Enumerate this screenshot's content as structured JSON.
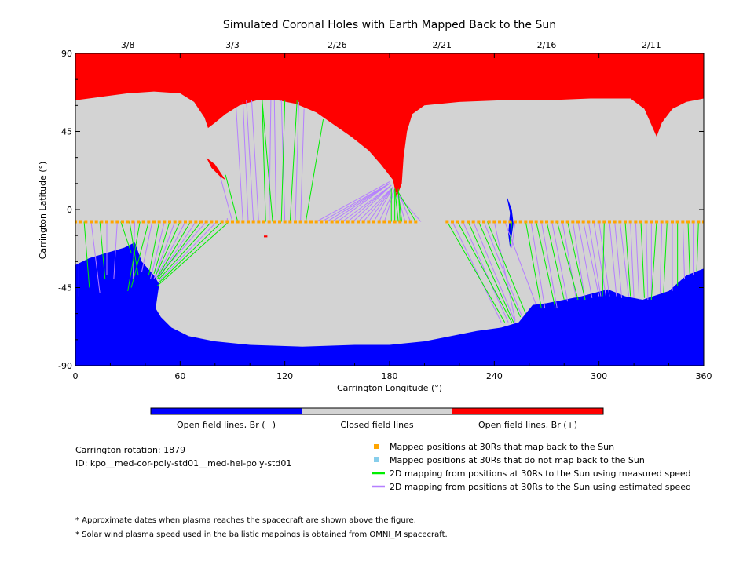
{
  "chart_data": {
    "type": "scatter",
    "title": "Simulated Coronal Holes with Earth Mapped Back to the Sun",
    "xlabel": "Carrington Longitude (°)",
    "ylabel": "Carrington Latitude (°)",
    "xlim": [
      0,
      360
    ],
    "ylim": [
      -90,
      90
    ],
    "x_ticks": [
      0,
      60,
      120,
      180,
      240,
      300,
      360
    ],
    "y_ticks": [
      90,
      45,
      0,
      -45,
      -90
    ],
    "top_axis": {
      "ticks": [
        {
          "label": "3/8",
          "x": 30
        },
        {
          "label": "3/3",
          "x": 90
        },
        {
          "label": "2/26",
          "x": 150
        },
        {
          "label": "2/21",
          "x": 210
        },
        {
          "label": "2/16",
          "x": 270
        },
        {
          "label": "2/11",
          "x": 330
        }
      ]
    },
    "regions": {
      "colorbar": [
        {
          "label": "Open field lines, Br (−)",
          "color": "#0000ff"
        },
        {
          "label": "Closed field lines",
          "color": "#d3d3d3"
        },
        {
          "label": "Open field lines, Br (+)",
          "color": "#ff0000"
        }
      ],
      "north_hole_boundary": [
        [
          0,
          63
        ],
        [
          15,
          65
        ],
        [
          30,
          67
        ],
        [
          45,
          68
        ],
        [
          60,
          67
        ],
        [
          68,
          62
        ],
        [
          74,
          53
        ],
        [
          76,
          47
        ],
        [
          80,
          50
        ],
        [
          86,
          55
        ],
        [
          94,
          60
        ],
        [
          104,
          63
        ],
        [
          116,
          63
        ],
        [
          126,
          61
        ],
        [
          138,
          56
        ],
        [
          148,
          49
        ],
        [
          158,
          42
        ],
        [
          168,
          34
        ],
        [
          175,
          26
        ],
        [
          182,
          17
        ],
        [
          184,
          7
        ],
        [
          187,
          15
        ],
        [
          188,
          30
        ],
        [
          190,
          45
        ],
        [
          193,
          55
        ],
        [
          200,
          60
        ],
        [
          220,
          62
        ],
        [
          245,
          63
        ],
        [
          270,
          63
        ],
        [
          295,
          64
        ],
        [
          318,
          64
        ],
        [
          326,
          58
        ],
        [
          333,
          42
        ],
        [
          336,
          50
        ],
        [
          342,
          58
        ],
        [
          350,
          62
        ],
        [
          360,
          64
        ]
      ],
      "south_hole_boundary": [
        [
          0,
          -32
        ],
        [
          8,
          -28
        ],
        [
          18,
          -25
        ],
        [
          28,
          -22
        ],
        [
          34,
          -19
        ],
        [
          38,
          -30
        ],
        [
          45,
          -38
        ],
        [
          48,
          -43
        ],
        [
          47,
          -50
        ],
        [
          46,
          -57
        ],
        [
          49,
          -62
        ],
        [
          55,
          -68
        ],
        [
          65,
          -73
        ],
        [
          80,
          -76
        ],
        [
          100,
          -78
        ],
        [
          130,
          -79
        ],
        [
          160,
          -78
        ],
        [
          180,
          -78
        ],
        [
          200,
          -76
        ],
        [
          215,
          -73
        ],
        [
          230,
          -70
        ],
        [
          244,
          -68
        ],
        [
          254,
          -65
        ],
        [
          258,
          -60
        ],
        [
          262,
          -55
        ],
        [
          270,
          -54
        ],
        [
          290,
          -50
        ],
        [
          305,
          -46
        ],
        [
          315,
          -50
        ],
        [
          325,
          -52
        ],
        [
          340,
          -47
        ],
        [
          350,
          -38
        ],
        [
          360,
          -34
        ]
      ],
      "north_islands": [
        [
          [
            75,
            30
          ],
          [
            80,
            26
          ],
          [
            86,
            17
          ],
          [
            83,
            19
          ],
          [
            78,
            24
          ]
        ]
      ],
      "south_islands": [
        [
          [
            247,
            8
          ],
          [
            250,
            0
          ],
          [
            251,
            -8
          ],
          [
            249,
            -22
          ],
          [
            248,
            -14
          ],
          [
            249,
            -2
          ]
        ],
        [
          [
            108,
            -15
          ],
          [
            110,
            -15
          ],
          [
            110,
            -16
          ],
          [
            108,
            -16
          ]
        ]
      ]
    },
    "series": [
      {
        "name": "Mapped positions at 30Rs that map back to the Sun",
        "marker": "square",
        "color": "#ffa500",
        "lat": -7,
        "x": [
          0,
          3,
          6,
          9,
          12,
          15,
          18,
          21,
          24,
          27,
          30,
          33,
          36,
          39,
          42,
          45,
          48,
          51,
          54,
          57,
          60,
          63,
          66,
          69,
          72,
          75,
          78,
          81,
          84,
          87,
          90,
          93,
          96,
          99,
          102,
          105,
          108,
          111,
          114,
          117,
          120,
          123,
          126,
          129,
          132,
          135,
          138,
          141,
          144,
          147,
          150,
          153,
          156,
          159,
          162,
          165,
          168,
          171,
          174,
          177,
          180,
          183,
          186,
          189,
          192,
          195,
          213,
          216,
          219,
          222,
          225,
          228,
          231,
          234,
          237,
          240,
          243,
          246,
          249,
          252,
          255,
          258,
          261,
          264,
          267,
          270,
          273,
          276,
          279,
          282,
          285,
          288,
          291,
          294,
          297,
          300,
          303,
          306,
          309,
          312,
          315,
          318,
          321,
          324,
          327,
          330,
          333,
          336,
          339,
          342,
          345,
          348,
          351,
          354,
          357,
          360
        ]
      },
      {
        "name": "Mapped positions at 30Rs that do not map back to the Sun",
        "marker": "square",
        "color": "#87ceeb",
        "lat": -7,
        "x": []
      },
      {
        "name": "2D mapping from positions at 30Rs to the Sun using measured speed",
        "color": "#00ee00",
        "segments": [
          [
            0,
            -7,
            0,
            -28
          ],
          [
            5,
            -7,
            8,
            -45
          ],
          [
            14,
            -7,
            17,
            -40
          ],
          [
            26,
            -7,
            32,
            -25
          ],
          [
            31,
            -7,
            36,
            -38
          ],
          [
            37,
            -7,
            30,
            -47
          ],
          [
            42,
            -7,
            32,
            -45
          ],
          [
            48,
            -7,
            42,
            -38
          ],
          [
            54,
            -7,
            45,
            -37
          ],
          [
            60,
            -7,
            46,
            -38
          ],
          [
            66,
            -7,
            47,
            -39
          ],
          [
            72,
            -7,
            47,
            -40
          ],
          [
            78,
            -7,
            48,
            -40
          ],
          [
            84,
            -7,
            48,
            -42
          ],
          [
            88,
            -7,
            47,
            -44
          ],
          [
            93,
            -7,
            86,
            20
          ],
          [
            109,
            -7,
            107,
            63
          ],
          [
            113,
            -7,
            107,
            63
          ],
          [
            118,
            -7,
            120,
            63
          ],
          [
            123,
            -7,
            127,
            63
          ],
          [
            132,
            -7,
            142,
            52
          ],
          [
            181,
            -7,
            181,
            12
          ],
          [
            183,
            -7,
            183,
            12
          ],
          [
            185,
            -7,
            183,
            12
          ],
          [
            186,
            -7,
            185,
            12
          ],
          [
            187,
            -7,
            185,
            10
          ],
          [
            195,
            -7,
            185,
            10
          ],
          [
            213,
            -7,
            246,
            -65
          ],
          [
            219,
            -7,
            250,
            -65
          ],
          [
            225,
            -7,
            251,
            -65
          ],
          [
            231,
            -7,
            255,
            -62
          ],
          [
            236,
            -7,
            258,
            -60
          ],
          [
            250,
            -7,
            249,
            -20
          ],
          [
            258,
            -7,
            267,
            -57
          ],
          [
            264,
            -7,
            275,
            -57
          ],
          [
            270,
            -7,
            280,
            -52
          ],
          [
            276,
            -7,
            288,
            -52
          ],
          [
            282,
            -7,
            292,
            -52
          ],
          [
            303,
            -7,
            302,
            -50
          ],
          [
            315,
            -7,
            318,
            -50
          ],
          [
            324,
            -7,
            326,
            -51
          ],
          [
            333,
            -7,
            330,
            -52
          ],
          [
            339,
            -7,
            337,
            -48
          ],
          [
            345,
            -7,
            345,
            -44
          ],
          [
            351,
            -7,
            352,
            -37
          ],
          [
            357,
            -7,
            356,
            -36
          ]
        ]
      },
      {
        "name": "2D mapping from positions at 30Rs to the Sun using estimated speed",
        "color": "#b57fff",
        "segments": [
          [
            2,
            -7,
            2,
            -50
          ],
          [
            9,
            -7,
            14,
            -48
          ],
          [
            18,
            -7,
            18,
            -38
          ],
          [
            24,
            -7,
            22,
            -40
          ],
          [
            34,
            -7,
            33,
            -40
          ],
          [
            44,
            -7,
            38,
            -36
          ],
          [
            51,
            -7,
            43,
            -40
          ],
          [
            57,
            -7,
            45,
            -40
          ],
          [
            63,
            -7,
            46,
            -40
          ],
          [
            69,
            -7,
            47,
            -40
          ],
          [
            75,
            -7,
            47,
            -39
          ],
          [
            81,
            -7,
            48,
            -41
          ],
          [
            87,
            -7,
            87,
            -5
          ],
          [
            90,
            -7,
            83,
            19
          ],
          [
            96,
            -7,
            92,
            60
          ],
          [
            99,
            -7,
            96,
            62
          ],
          [
            102,
            -7,
            98,
            63
          ],
          [
            105,
            -7,
            101,
            63
          ],
          [
            111,
            -7,
            112,
            63
          ],
          [
            115,
            -7,
            114,
            63
          ],
          [
            120,
            -7,
            118,
            63
          ],
          [
            126,
            -7,
            128,
            62
          ],
          [
            129,
            -7,
            131,
            58
          ],
          [
            138,
            -7,
            180,
            16
          ],
          [
            141,
            -7,
            180,
            15
          ],
          [
            144,
            -7,
            180,
            15
          ],
          [
            147,
            -7,
            180,
            15
          ],
          [
            150,
            -7,
            180,
            15
          ],
          [
            153,
            -7,
            181,
            14
          ],
          [
            156,
            -7,
            181,
            14
          ],
          [
            159,
            -7,
            181,
            14
          ],
          [
            162,
            -7,
            182,
            13
          ],
          [
            165,
            -7,
            182,
            13
          ],
          [
            168,
            -7,
            182,
            13
          ],
          [
            171,
            -7,
            182,
            13
          ],
          [
            174,
            -7,
            183,
            12
          ],
          [
            177,
            -7,
            183,
            12
          ],
          [
            189,
            -7,
            184,
            10
          ],
          [
            192,
            -7,
            185,
            10
          ],
          [
            198,
            -7,
            185,
            8
          ],
          [
            216,
            -7,
            244,
            -65
          ],
          [
            222,
            -7,
            248,
            -65
          ],
          [
            228,
            -7,
            252,
            -65
          ],
          [
            234,
            -7,
            256,
            -62
          ],
          [
            240,
            -7,
            252,
            -64
          ],
          [
            246,
            -7,
            264,
            -55
          ],
          [
            252,
            -7,
            250,
            -22
          ],
          [
            261,
            -7,
            269,
            -57
          ],
          [
            267,
            -7,
            276,
            -57
          ],
          [
            273,
            -7,
            282,
            -53
          ],
          [
            279,
            -7,
            287,
            -52
          ],
          [
            285,
            -7,
            292,
            -52
          ],
          [
            288,
            -7,
            296,
            -51
          ],
          [
            291,
            -7,
            300,
            -50
          ],
          [
            294,
            -7,
            301,
            -50
          ],
          [
            297,
            -7,
            304,
            -50
          ],
          [
            300,
            -7,
            306,
            -50
          ],
          [
            306,
            -7,
            310,
            -50
          ],
          [
            309,
            -7,
            313,
            -51
          ],
          [
            312,
            -7,
            317,
            -50
          ],
          [
            318,
            -7,
            320,
            -51
          ],
          [
            321,
            -7,
            323,
            -52
          ],
          [
            327,
            -7,
            328,
            -52
          ],
          [
            330,
            -7,
            330,
            -52
          ],
          [
            336,
            -7,
            335,
            -48
          ],
          [
            342,
            -7,
            342,
            -47
          ],
          [
            348,
            -7,
            349,
            -40
          ],
          [
            354,
            -7,
            354,
            -38
          ],
          [
            360,
            -7,
            360,
            -35
          ]
        ]
      }
    ]
  },
  "info": {
    "rotation": "Carrington rotation: 1879",
    "id": "ID: kpo__med-cor-poly-std01__med-hel-poly-std01"
  },
  "footnotes": [
    "* Approximate dates when plasma reaches the spacecraft are shown above the figure.",
    "* Solar wind plasma speed used in the ballistic mappings is obtained from OMNI_M spacecraft."
  ]
}
